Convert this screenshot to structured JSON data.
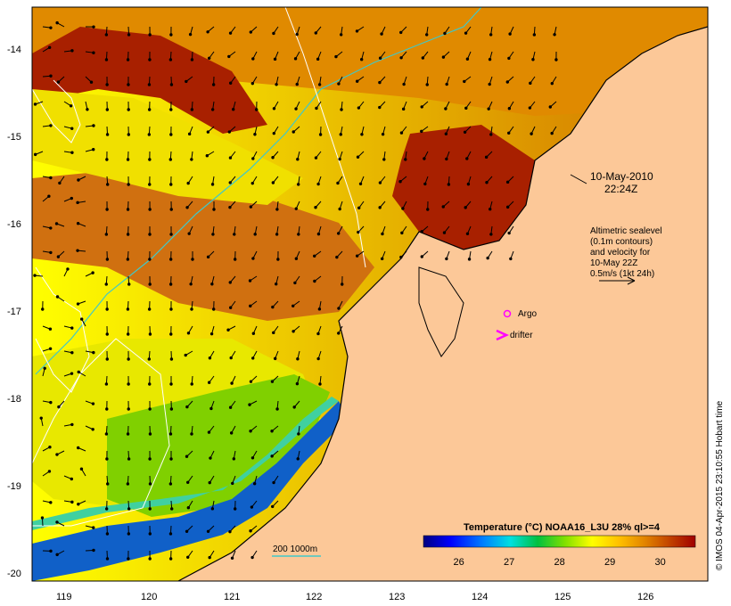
{
  "map": {
    "lon_range": [
      118.65,
      126.7
    ],
    "lat_range": [
      -20.1,
      -13.65
    ],
    "lon_ticks": [
      "119",
      "120",
      "121",
      "122",
      "123",
      "124",
      "125",
      "126"
    ],
    "lat_ticks": [
      "-14",
      "-15",
      "-16",
      "-17",
      "-18",
      "-19",
      "-20"
    ],
    "land_color": "#fcc898",
    "ocean_cold_color": "#1060c8",
    "ocean_warm_color": "#e08000"
  },
  "annotations": {
    "date": "10-May-2010",
    "time": "22:24Z",
    "altimetry_lines": [
      "Altimetric sealevel",
      "(0.1m contours)",
      "and velocity for",
      "10-May 22Z",
      "0.5m/s (1kt 24h)"
    ],
    "argo_label": "Argo",
    "drifter_label": "drifter",
    "depth_label": "200  1000m"
  },
  "colorbar": {
    "title": "Temperature (°C) NOAA16_L3U 28% ql>=4",
    "ticks": [
      "26",
      "27",
      "28",
      "29",
      "30"
    ],
    "tick_values": [
      26,
      27,
      28,
      29,
      30
    ],
    "range": [
      25.3,
      30.7
    ],
    "colors": [
      "#000080",
      "#0000ff",
      "#0080ff",
      "#00e0e0",
      "#00c040",
      "#80e000",
      "#ffff00",
      "#ffc000",
      "#e08000",
      "#c04000",
      "#a00000"
    ]
  },
  "credit": "© IMOS 04-Apr-2015 23:10:55 Hobart time"
}
